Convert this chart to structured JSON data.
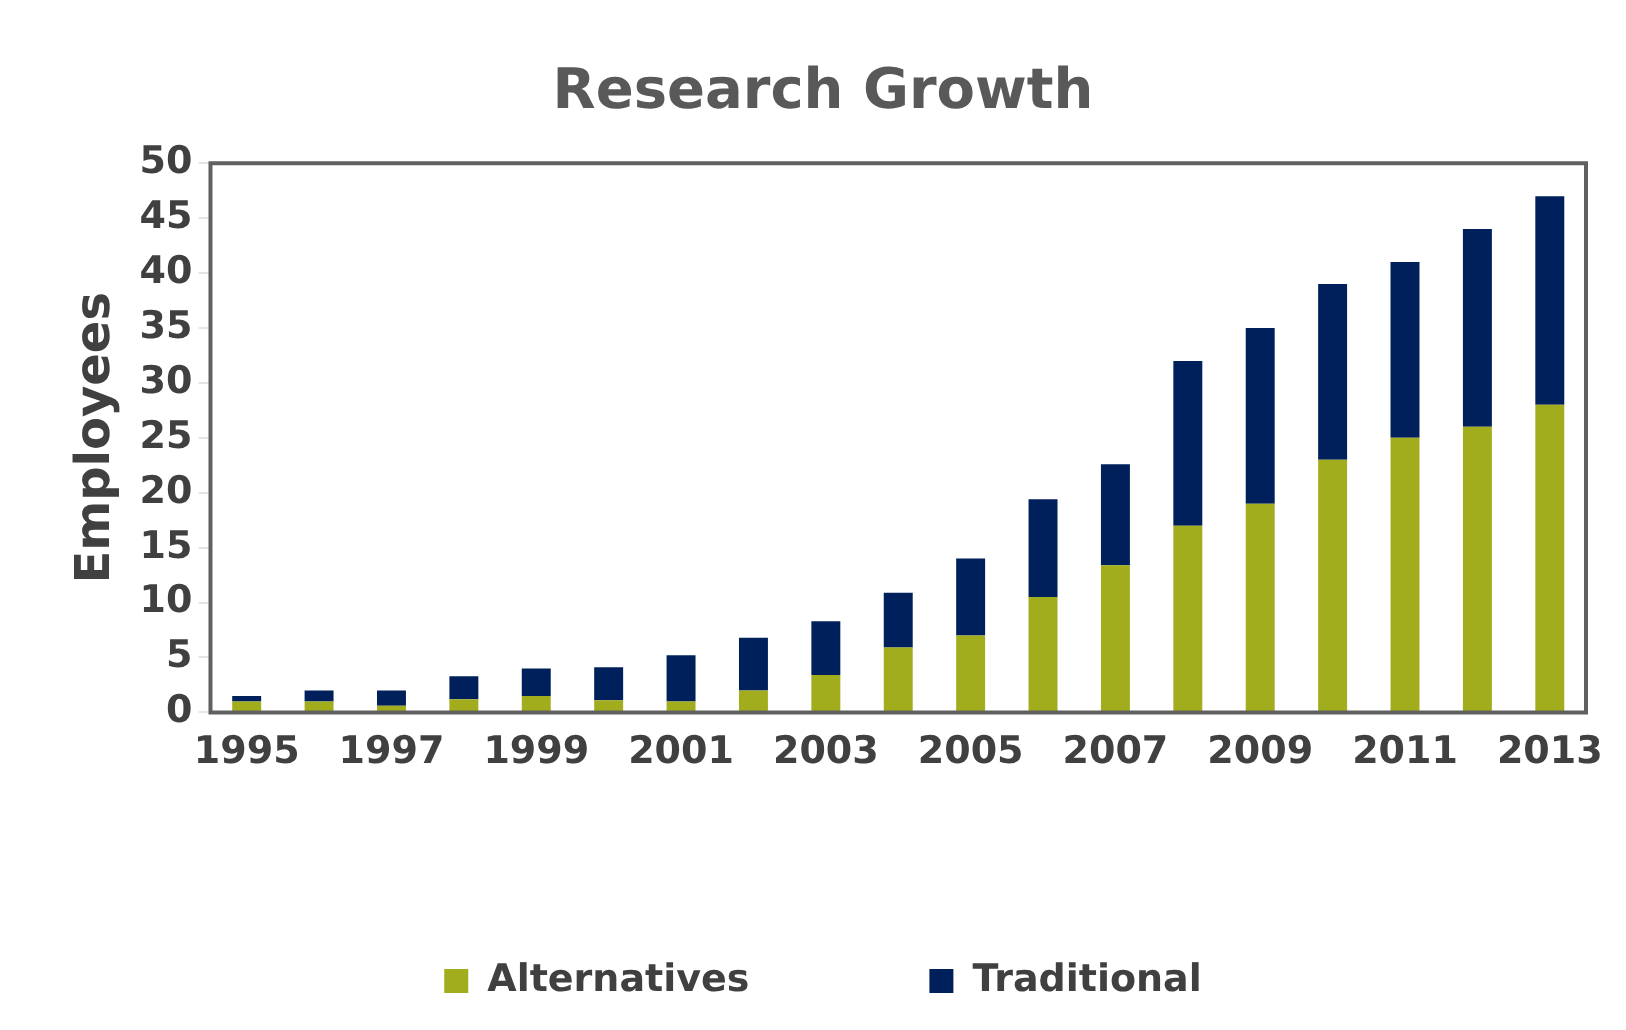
{
  "chart_data": {
    "type": "bar",
    "title": "Research Growth",
    "ylabel": "Employees",
    "stacked": true,
    "legend": "bottom",
    "grid": false,
    "categories": [
      "1995",
      null,
      "1997",
      null,
      "1999",
      null,
      "2001",
      null,
      "2003",
      null,
      "2005",
      null,
      "2007",
      null,
      "2009",
      null,
      "2011",
      null,
      "2013"
    ],
    "ylim": [
      0,
      50
    ],
    "yticks": [
      0,
      5,
      10,
      15,
      20,
      25,
      30,
      35,
      40,
      45,
      50
    ],
    "series": [
      {
        "name": "Alternatives",
        "color": "#a2ad1e",
        "values": [
          1,
          1,
          0.6,
          1.2,
          1.5,
          1.1,
          1,
          2,
          3.4,
          5.9,
          7,
          10.5,
          13.4,
          17,
          19,
          23,
          25,
          26,
          28
        ]
      },
      {
        "name": "Traditional",
        "color": "#00205c",
        "values": [
          0.5,
          1,
          1.4,
          2.1,
          2.5,
          3,
          4.2,
          4.8,
          4.9,
          5,
          7,
          8.9,
          9.2,
          15,
          16,
          16,
          16,
          18,
          19
        ]
      }
    ]
  }
}
